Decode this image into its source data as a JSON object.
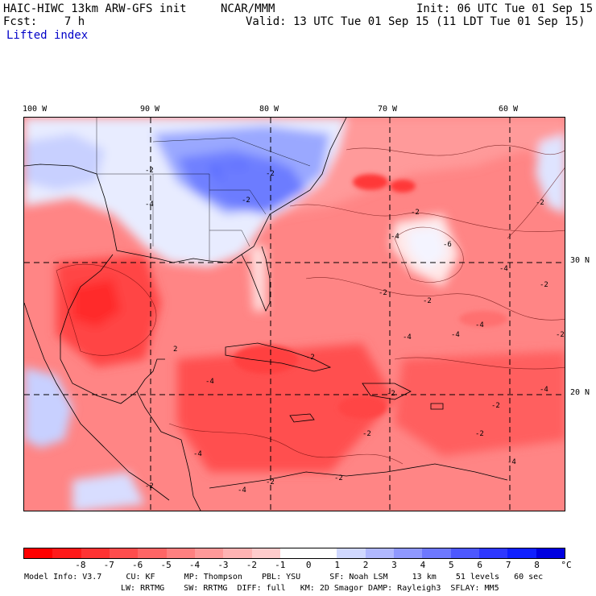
{
  "header": {
    "model": "HAIC-HIWC 13km ARW-GFS init",
    "org": "NCAR/MMM",
    "init": "Init: 06 UTC Tue 01 Sep 15",
    "fcst": "Fcst:    7 h",
    "valid": "Valid: 13 UTC Tue 01 Sep 15 (11 LDT Tue 01 Sep 15)",
    "field": "Lifted index"
  },
  "map": {
    "lon_labels": [
      "100 W",
      "90 W",
      "80 W",
      "70 W",
      "60 W"
    ],
    "lat_labels": [
      "30 N",
      "20 N"
    ],
    "contour_labels": [
      "-2",
      "-2",
      "-2",
      "-2",
      "-2",
      "-4",
      "-4",
      "-4",
      "-6",
      "-2",
      "-2",
      "-4",
      "-2",
      "2",
      "-4",
      "-2",
      "-4",
      "-2",
      "-4",
      "-2",
      "-2",
      "-2",
      "-4",
      "-2",
      "-2",
      "-4",
      "-2",
      "-4",
      "-2",
      "-4"
    ],
    "colors": {
      "border": "#000000",
      "grid": "#000000"
    }
  },
  "colorbar": {
    "ticks": [
      "-8",
      "-7",
      "-6",
      "-5",
      "-4",
      "-3",
      "-2",
      "-1",
      "0",
      "1",
      "2",
      "3",
      "4",
      "5",
      "6",
      "7",
      "8"
    ],
    "unit": "°C",
    "colors": [
      "#ff0000",
      "#ff1a1a",
      "#ff3333",
      "#ff4d4d",
      "#ff6666",
      "#ff8080",
      "#ff9999",
      "#ffb3b3",
      "#ffcccc",
      "#ffffff",
      "#ffffff",
      "#d0d8ff",
      "#b0b8ff",
      "#8f98ff",
      "#6e78ff",
      "#4d58ff",
      "#2e38ff",
      "#1020ff",
      "#0000e0"
    ]
  },
  "footer": {
    "line1": "Model Info: V3.7     CU: KF      MP: Thompson    PBL: YSU      SF: Noah LSM     13 km    51 levels   60 sec",
    "line2": "LW: RRTMG    SW: RRTMG  DIFF: full   KM: 2D Smagor DAMP: Rayleigh3  SFLAY: MM5"
  }
}
